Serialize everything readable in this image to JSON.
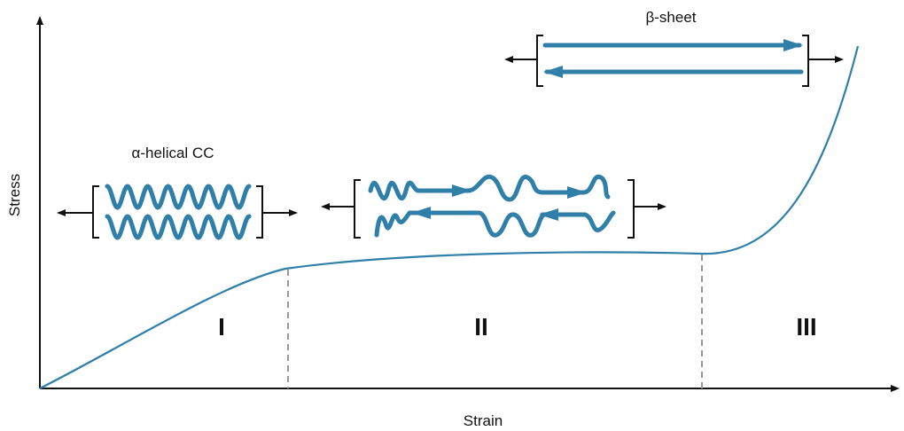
{
  "axes": {
    "y_label": "Stress",
    "x_label": "Strain"
  },
  "regions": [
    "I",
    "II",
    "III"
  ],
  "annotations": {
    "alpha": "α-helical CC",
    "beta": "β-sheet"
  }
}
